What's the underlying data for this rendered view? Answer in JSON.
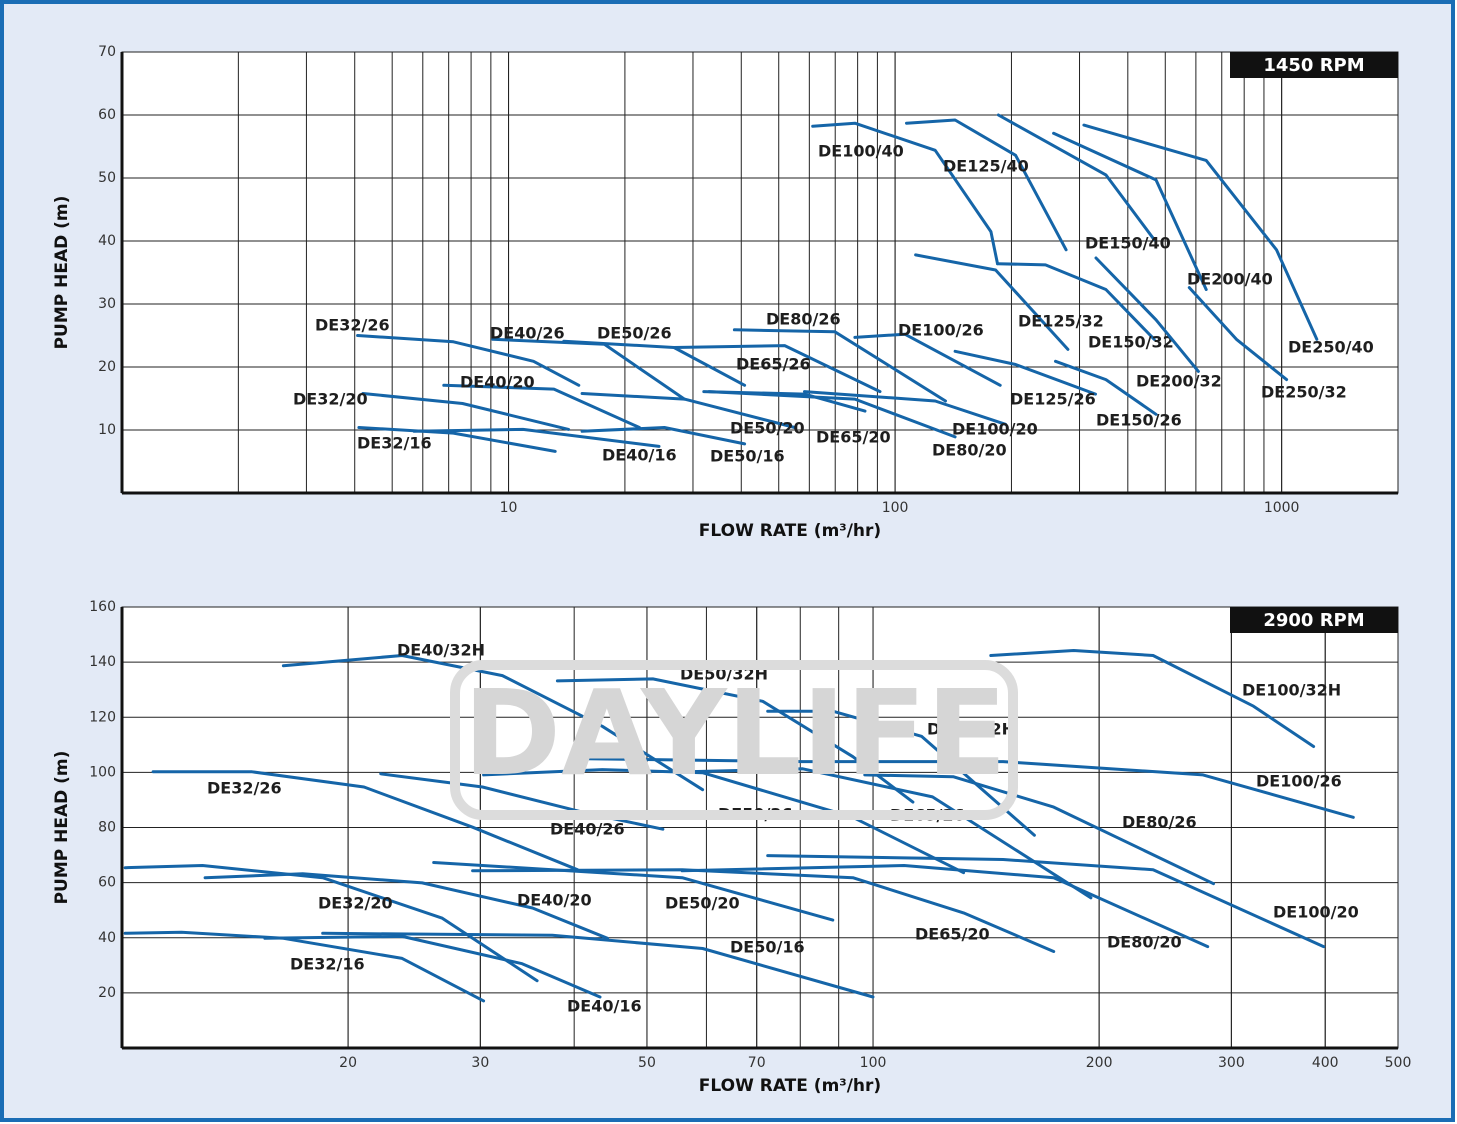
{
  "watermark": "DAYLIFE",
  "chart_data": [
    {
      "type": "line",
      "rpm": "1450 RPM",
      "xlabel": "FLOW RATE (m³/hr)",
      "ylabel": "PUMP HEAD (m)",
      "xscale": "log",
      "xlim": [
        1,
        2000
      ],
      "xticks": [
        10,
        100,
        1000
      ],
      "minor_grid": true,
      "ylim": [
        0,
        70
      ],
      "yticks": [
        10,
        20,
        30,
        40,
        50,
        60,
        70
      ],
      "grid": true,
      "color": "#1565a8",
      "series": [
        {
          "name": "DE32/26",
          "x": [
            4.07,
            7.2,
            11.6,
            15.2
          ],
          "values": [
            25.0,
            24.0,
            20.9,
            17.1
          ]
        },
        {
          "name": "DE32/20",
          "x": [
            4.2,
            7.6,
            14.3
          ],
          "values": [
            15.8,
            14.2,
            10.1
          ]
        },
        {
          "name": "DE32/16",
          "x": [
            4.1,
            7.2,
            13.2
          ],
          "values": [
            10.4,
            9.5,
            6.6
          ]
        },
        {
          "name": "DE40/26",
          "x": [
            9.1,
            17.7,
            28.5
          ],
          "values": [
            24.4,
            23.6,
            14.9
          ]
        },
        {
          "name": "DE40/20",
          "x": [
            6.8,
            13.1,
            21.8
          ],
          "values": [
            17.1,
            16.5,
            10.4
          ]
        },
        {
          "name": "DE40/16",
          "x": [
            5.7,
            10.9,
            24.5
          ],
          "values": [
            9.8,
            10.1,
            7.4
          ]
        },
        {
          "name": "DE50/26",
          "x": [
            13.9,
            26.8,
            40.8
          ],
          "values": [
            24.1,
            23.1,
            17.1
          ]
        },
        {
          "name": "DE50/20",
          "x": [
            15.5,
            28.5,
            55
          ],
          "values": [
            15.8,
            14.9,
            10.4
          ]
        },
        {
          "name": "DE50/16",
          "x": [
            15.5,
            25.3,
            40.8
          ],
          "values": [
            9.8,
            10.4,
            7.8
          ]
        },
        {
          "name": "DE65/26",
          "x": [
            26.8,
            51.8,
            91.4
          ],
          "values": [
            23.1,
            23.4,
            16.1
          ]
        },
        {
          "name": "DE65/20",
          "x": [
            32,
            58.3,
            83.6
          ],
          "values": [
            16.1,
            15.7,
            13.0
          ]
        },
        {
          "name": "DE80/26",
          "x": [
            38.4,
            69.8,
            135
          ],
          "values": [
            25.9,
            25.6,
            14.6
          ]
        },
        {
          "name": "DE80/20",
          "x": [
            33,
            78.7,
            143
          ],
          "values": [
            16.1,
            14.9,
            8.9
          ]
        },
        {
          "name": "DE100/26",
          "x": [
            78.7,
            106,
            187
          ],
          "values": [
            24.7,
            25.2,
            17.1
          ]
        },
        {
          "name": "DE100/20",
          "x": [
            58.3,
            127,
            193
          ],
          "values": [
            16.1,
            14.6,
            10.9
          ]
        },
        {
          "name": "DE100/40",
          "x": [
            61.2,
            78.7,
            127,
            177,
            184
          ],
          "values": [
            58.2,
            58.7,
            54.4,
            41.5,
            36.4
          ]
        },
        {
          "name": "DE125/40",
          "x": [
            107,
            143,
            205,
            277
          ],
          "values": [
            58.7,
            59.2,
            53.6,
            38.6
          ]
        },
        {
          "name": "DE125/32",
          "x": [
            113,
            182,
            280
          ],
          "values": [
            37.8,
            35.4,
            22.8
          ]
        },
        {
          "name": "DE125/26",
          "x": [
            143,
            205,
            330
          ],
          "values": [
            22.5,
            20.4,
            15.7
          ]
        },
        {
          "name": "DE150/40",
          "x": [
            185,
            351,
            468
          ],
          "values": [
            60.0,
            50.5,
            40.2
          ]
        },
        {
          "name": "DE150/32",
          "x": [
            184,
            245,
            351,
            468
          ],
          "values": [
            36.4,
            36.2,
            32.3,
            24.4
          ]
        },
        {
          "name": "DE150/26",
          "x": [
            260,
            351,
            473
          ],
          "values": [
            20.9,
            18.0,
            12.5
          ]
        },
        {
          "name": "DE200/40",
          "x": [
            257,
            473,
            638
          ],
          "values": [
            57.1,
            49.7,
            32.3
          ]
        },
        {
          "name": "DE200/32",
          "x": [
            331,
            473,
            609
          ],
          "values": [
            37.3,
            27.5,
            19.3
          ]
        },
        {
          "name": "DE250/40",
          "x": [
            308,
            638,
            970,
            1233
          ],
          "values": [
            58.4,
            52.8,
            38.6,
            24.4
          ]
        },
        {
          "name": "DE250/32",
          "x": [
            577,
            764,
            1030
          ],
          "values": [
            32.6,
            24.4,
            18.0
          ]
        }
      ]
    },
    {
      "type": "line",
      "rpm": "2900 RPM",
      "xlabel": "FLOW RATE (m³/hr)",
      "ylabel": "PUMP HEAD (m)",
      "xscale": "log",
      "xlim": [
        10,
        500
      ],
      "xticks": [
        20,
        30,
        50,
        70,
        100,
        200,
        300,
        400,
        500
      ],
      "minor_grid": true,
      "ylim": [
        0,
        160
      ],
      "yticks": [
        20,
        40,
        60,
        80,
        100,
        120,
        140,
        160
      ],
      "grid": true,
      "color": "#1565a8",
      "series": [
        {
          "name": "DE40/32H",
          "x": [
            16.4,
            23.6,
            32.1,
            43.6,
            59.3
          ],
          "values": [
            138.7,
            142.4,
            135.1,
            116.7,
            93.7
          ]
        },
        {
          "name": "DE50/32H",
          "x": [
            38.0,
            50.9,
            71.3,
            94.0,
            113
          ],
          "values": [
            133.2,
            133.9,
            125.8,
            105.7,
            89.2
          ]
        },
        {
          "name": "DE65/32H",
          "x": [
            72.4,
            88.4,
            116,
            164
          ],
          "values": [
            122.2,
            122.2,
            113.1,
            77.2
          ]
        },
        {
          "name": "DE100/32H",
          "x": [
            143.5,
            185,
            236,
            321,
            386
          ],
          "values": [
            142.4,
            144.2,
            142.4,
            124.0,
            109.4
          ]
        },
        {
          "name": "DE32/26",
          "x": [
            11.0,
            14.9,
            21.0,
            29.3,
            40.4
          ],
          "values": [
            100.2,
            100.2,
            94.7,
            80.1,
            64.7
          ]
        },
        {
          "name": "DE40/26",
          "x": [
            22.1,
            30.2,
            41.0,
            52.5
          ],
          "values": [
            99.5,
            94.7,
            85.6,
            79.4
          ]
        },
        {
          "name": "DE50/26",
          "x": [
            30.3,
            43.6,
            59.3,
            94,
            132
          ],
          "values": [
            99.1,
            101.0,
            99.9,
            83.7,
            63.6
          ]
        },
        {
          "name": "DE65/26",
          "x": [
            56.6,
            80.6,
            120,
            195
          ],
          "values": [
            100.2,
            101.3,
            91.1,
            54.5
          ]
        },
        {
          "name": "DE100/26",
          "x": [
            40.4,
            80.6,
            149,
            275,
            436
          ],
          "values": [
            105.0,
            103.9,
            103.9,
            99.1,
            83.7
          ]
        },
        {
          "name": "DE80/26",
          "x": [
            97.5,
            128,
            174,
            284
          ],
          "values": [
            99.1,
            98.4,
            87.4,
            59.6
          ]
        },
        {
          "name": "DE32/20",
          "x": [
            10.1,
            12.8,
            18.5,
            26.7,
            35.7
          ],
          "values": [
            65.4,
            66.2,
            61.8,
            47.1,
            24.4
          ]
        },
        {
          "name": "DE40/20",
          "x": [
            12.9,
            17.4,
            25.1,
            35.2,
            44.3
          ],
          "values": [
            61.8,
            63.2,
            59.9,
            50.8,
            39.8
          ]
        },
        {
          "name": "DE50/20",
          "x": [
            26.0,
            37.4,
            55.7,
            88.4
          ],
          "values": [
            67.3,
            64.7,
            61.8,
            46.4
          ]
        },
        {
          "name": "DE65/20",
          "x": [
            29.3,
            55.7,
            94,
            132,
            174
          ],
          "values": [
            64.3,
            64.7,
            61.8,
            49.0,
            35.0
          ]
        },
        {
          "name": "DE80/20",
          "x": [
            55.7,
            110,
            174,
            279
          ],
          "values": [
            64.3,
            66.2,
            61.8,
            36.8
          ]
        },
        {
          "name": "DE100/20",
          "x": [
            72.4,
            149,
            236,
            398
          ],
          "values": [
            69.8,
            68.4,
            64.7,
            36.8
          ]
        },
        {
          "name": "DE32/16",
          "x": [
            10.1,
            12.0,
            16.4,
            23.6,
            30.3
          ],
          "values": [
            41.6,
            42.0,
            39.8,
            32.5,
            17.1
          ]
        },
        {
          "name": "DE40/16",
          "x": [
            15.5,
            23.6,
            34.1,
            43.3
          ],
          "values": [
            39.8,
            40.5,
            30.6,
            18.5
          ]
        },
        {
          "name": "DE50/16",
          "x": [
            18.5,
            37.4,
            59.3,
            100
          ],
          "values": [
            41.6,
            40.9,
            36.1,
            18.5
          ]
        }
      ]
    }
  ]
}
